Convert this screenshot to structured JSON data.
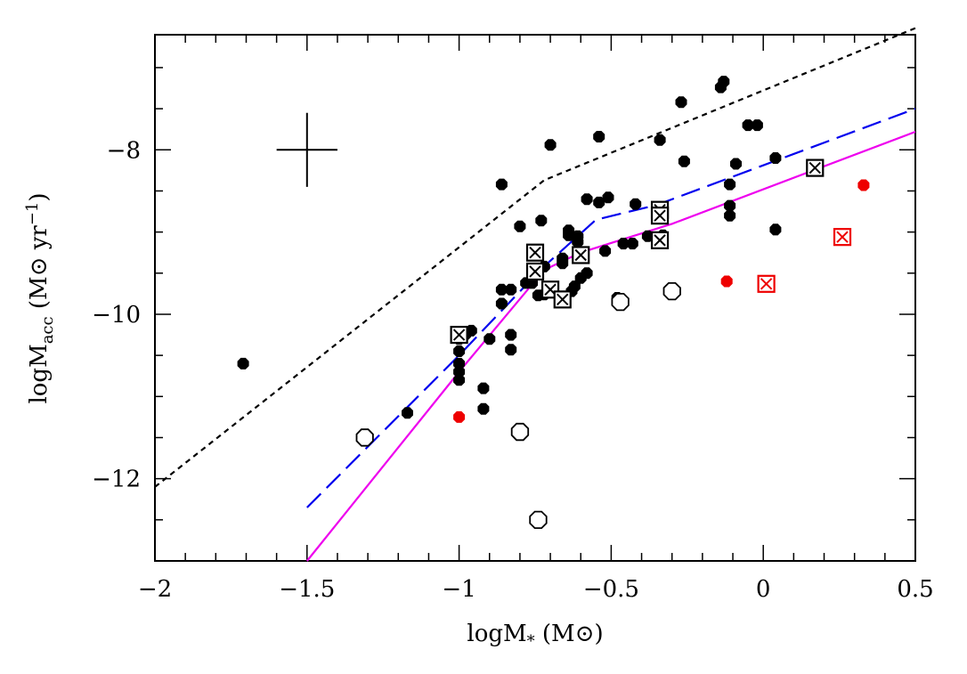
{
  "chart_data": {
    "type": "scatter",
    "title": "",
    "xlabel": "logM* (M⊙)",
    "ylabel": "logMacc (M⊙ yr⁻¹)",
    "xlim": [
      -2,
      0.5
    ],
    "ylim": [
      -13,
      -6.6
    ],
    "x_ticks": [
      "−2",
      "−1.5",
      "−1",
      "−0.5",
      "0",
      "0.5"
    ],
    "x_tick_values": [
      -2,
      -1.5,
      -1,
      -0.5,
      0,
      0.5
    ],
    "y_ticks": [
      "−8",
      "−10",
      "−12"
    ],
    "y_tick_values": [
      -8,
      -10,
      -12
    ],
    "grid": false,
    "colors": {
      "black": "#000000",
      "red": "#ee0000",
      "blue": "#0000ee",
      "magenta": "#ee00ee"
    },
    "series": [
      {
        "marker": "filled-circle",
        "color": "#000000",
        "points": [
          [
            -1.71,
            -10.6
          ],
          [
            -1.17,
            -11.2
          ],
          [
            -1.0,
            -10.3
          ],
          [
            -1.0,
            -10.45
          ],
          [
            -1.0,
            -10.6
          ],
          [
            -1.0,
            -10.7
          ],
          [
            -1.0,
            -10.8
          ],
          [
            -0.98,
            -10.25
          ],
          [
            -0.96,
            -10.2
          ],
          [
            -0.92,
            -10.9
          ],
          [
            -0.92,
            -11.15
          ],
          [
            -0.9,
            -10.3
          ],
          [
            -0.86,
            -8.42
          ],
          [
            -0.86,
            -9.7
          ],
          [
            -0.86,
            -9.87
          ],
          [
            -0.83,
            -9.7
          ],
          [
            -0.83,
            -10.25
          ],
          [
            -0.83,
            -10.43
          ],
          [
            -0.8,
            -8.93
          ],
          [
            -0.78,
            -9.62
          ],
          [
            -0.76,
            -9.62
          ],
          [
            -0.74,
            -9.77
          ],
          [
            -0.74,
            -9.5
          ],
          [
            -0.73,
            -8.86
          ],
          [
            -0.72,
            -9.42
          ],
          [
            -0.72,
            -9.76
          ],
          [
            -0.7,
            -7.94
          ],
          [
            -0.7,
            -9.72
          ],
          [
            -0.66,
            -9.32
          ],
          [
            -0.66,
            -9.38
          ],
          [
            -0.64,
            -8.98
          ],
          [
            -0.64,
            -9.04
          ],
          [
            -0.63,
            -9.72
          ],
          [
            -0.62,
            -9.66
          ],
          [
            -0.61,
            -9.05
          ],
          [
            -0.61,
            -9.12
          ],
          [
            -0.6,
            -9.56
          ],
          [
            -0.58,
            -8.6
          ],
          [
            -0.58,
            -9.5
          ],
          [
            -0.54,
            -7.84
          ],
          [
            -0.54,
            -8.64
          ],
          [
            -0.52,
            -9.23
          ],
          [
            -0.51,
            -8.58
          ],
          [
            -0.48,
            -9.8
          ],
          [
            -0.46,
            -9.14
          ],
          [
            -0.43,
            -9.14
          ],
          [
            -0.42,
            -8.66
          ],
          [
            -0.38,
            -9.05
          ],
          [
            -0.34,
            -7.88
          ],
          [
            -0.33,
            -9.04
          ],
          [
            -0.27,
            -7.42
          ],
          [
            -0.26,
            -8.14
          ],
          [
            -0.14,
            -7.24
          ],
          [
            -0.13,
            -7.17
          ],
          [
            -0.11,
            -8.42
          ],
          [
            -0.11,
            -8.68
          ],
          [
            -0.11,
            -8.8
          ],
          [
            -0.09,
            -8.17
          ],
          [
            -0.05,
            -7.7
          ],
          [
            -0.02,
            -7.7
          ],
          [
            0.04,
            -8.1
          ],
          [
            0.04,
            -8.97
          ]
        ]
      },
      {
        "marker": "open-circle",
        "color": "#000000",
        "points": [
          [
            -1.31,
            -11.5
          ],
          [
            -0.8,
            -11.43
          ],
          [
            -0.74,
            -12.5
          ],
          [
            -0.47,
            -9.85
          ],
          [
            -0.3,
            -9.72
          ]
        ]
      },
      {
        "marker": "boxed-x",
        "color": "#000000",
        "points": [
          [
            -1.0,
            -10.25
          ],
          [
            -0.75,
            -9.25
          ],
          [
            -0.75,
            -9.48
          ],
          [
            -0.7,
            -9.7
          ],
          [
            -0.66,
            -9.82
          ],
          [
            -0.6,
            -9.28
          ],
          [
            -0.34,
            -8.73
          ],
          [
            -0.34,
            -8.8
          ],
          [
            -0.34,
            -9.1
          ],
          [
            0.17,
            -8.22
          ]
        ]
      },
      {
        "marker": "filled-circle",
        "color": "#ee0000",
        "points": [
          [
            -1.0,
            -11.25
          ],
          [
            -0.12,
            -9.6
          ],
          [
            0.33,
            -8.43
          ]
        ]
      },
      {
        "marker": "boxed-x",
        "color": "#ee0000",
        "points": [
          [
            0.01,
            -9.63
          ],
          [
            0.26,
            -9.06
          ]
        ]
      }
    ],
    "lines": [
      {
        "style": "short-dashed",
        "color": "#000000",
        "points": [
          [
            -2.0,
            -12.1
          ],
          [
            -0.72,
            -8.37
          ],
          [
            0.5,
            -6.52
          ]
        ]
      },
      {
        "style": "long-dashed",
        "color": "#0000ee",
        "points": [
          [
            -1.5,
            -12.35
          ],
          [
            -1.0,
            -10.5
          ],
          [
            -0.73,
            -9.45
          ],
          [
            -0.55,
            -8.85
          ],
          [
            -0.35,
            -8.67
          ],
          [
            0.5,
            -7.5
          ]
        ]
      },
      {
        "style": "solid",
        "color": "#ee00ee",
        "points": [
          [
            -1.5,
            -13.0
          ],
          [
            -1.0,
            -10.7
          ],
          [
            -0.72,
            -9.46
          ],
          [
            -0.6,
            -9.25
          ],
          [
            -0.3,
            -8.9
          ],
          [
            0.5,
            -7.78
          ]
        ]
      }
    ],
    "error_cross": {
      "x": -1.5,
      "y": -8.0,
      "x_err": 0.1,
      "y_err": 0.45
    }
  }
}
